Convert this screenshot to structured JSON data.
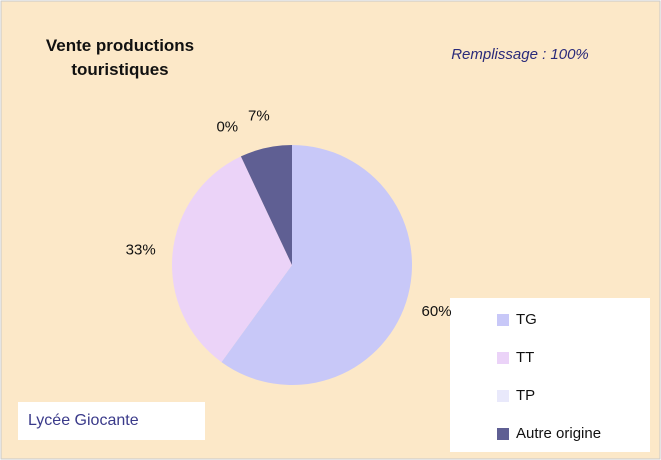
{
  "chart_data": {
    "type": "pie",
    "title": "Vente productions touristiques",
    "annotation": "Remplissage : 100%",
    "footer": "Lycée Giocante",
    "categories": [
      "TG",
      "TT",
      "TP",
      "Autre origine"
    ],
    "values": [
      60,
      33,
      0,
      7
    ],
    "value_labels": [
      "60%",
      "33%",
      "0%",
      "7%"
    ],
    "colors": [
      "#c8c8f8",
      "#ebd3f8",
      "#e9e9fb",
      "#5f5f93"
    ],
    "legend": "bottom-right"
  }
}
